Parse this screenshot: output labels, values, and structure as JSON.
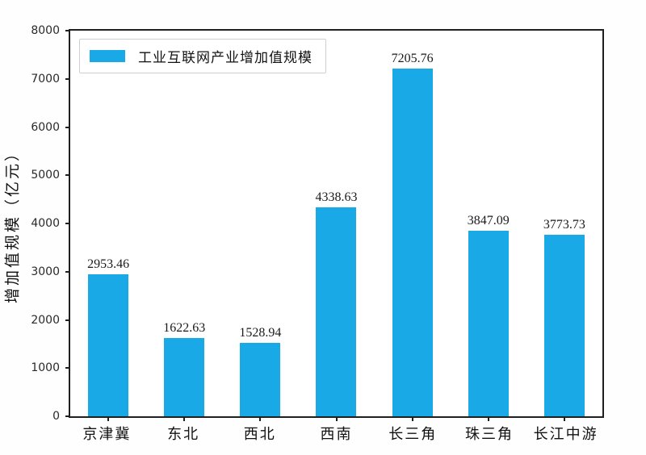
{
  "chart_data": {
    "type": "bar",
    "categories": [
      "京津冀",
      "东北",
      "西北",
      "西南",
      "长三角",
      "珠三角",
      "长江中游"
    ],
    "values": [
      2953.46,
      1622.63,
      1528.94,
      4338.63,
      7205.76,
      3847.09,
      3773.73
    ],
    "value_labels": [
      "2953.46",
      "1622.63",
      "1528.94",
      "4338.63",
      "7205.76",
      "3847.09",
      "3773.73"
    ],
    "title": "",
    "xlabel": "",
    "ylabel": "增加值规模（亿元）",
    "ylim": [
      0,
      8000
    ],
    "yticks": [
      0,
      1000,
      2000,
      3000,
      4000,
      5000,
      6000,
      7000,
      8000
    ],
    "grid": false,
    "legend": {
      "label": "工业互联网产业增加值规模",
      "position": "upper-left"
    },
    "bar_color": "#18a9e6",
    "axis_color": "#1f1f1f"
  }
}
